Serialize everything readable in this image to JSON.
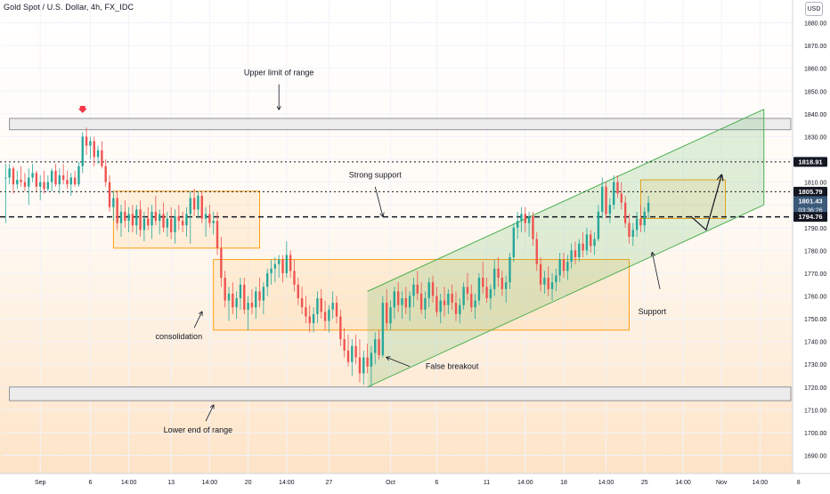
{
  "header": {
    "symbol": "Gold Spot / U.S. Dollar, 4h, FX_IDC",
    "currency": "USD"
  },
  "colors": {
    "up": "#26a69a",
    "down": "#ef5350",
    "channel": "#4caf50",
    "box": "#ff9800",
    "grid": "#f0f3fa"
  },
  "chart_data": {
    "type": "candlestick",
    "title": "Gold Spot / U.S. Dollar, 4h, FX_IDC",
    "y_range": [
      1682,
      1890
    ],
    "y_ticks": [
      1690,
      1700,
      1710,
      1720,
      1730,
      1740,
      1750,
      1760,
      1770,
      1780,
      1790,
      1800,
      1810,
      1820,
      1830,
      1840,
      1850,
      1860,
      1870,
      1880
    ],
    "x_range": [
      0,
      205
    ],
    "x_ticks": [
      {
        "bar": 10,
        "label": "Sep"
      },
      {
        "bar": 23,
        "label": "6"
      },
      {
        "bar": 33,
        "label": "14:00"
      },
      {
        "bar": 44,
        "label": "13"
      },
      {
        "bar": 54,
        "label": "14:00"
      },
      {
        "bar": 64,
        "label": "20"
      },
      {
        "bar": 74,
        "label": "14:00"
      },
      {
        "bar": 85,
        "label": "27"
      },
      {
        "bar": 101,
        "label": "Oct"
      },
      {
        "bar": 113,
        "label": "6"
      },
      {
        "bar": 126,
        "label": "11"
      },
      {
        "bar": 136,
        "label": "14:00"
      },
      {
        "bar": 146,
        "label": "18"
      },
      {
        "bar": 157,
        "label": "14:00"
      },
      {
        "bar": 167,
        "label": "25"
      },
      {
        "bar": 177,
        "label": "14:00"
      },
      {
        "bar": 187,
        "label": "Nov"
      },
      {
        "bar": 197,
        "label": "14:00"
      },
      {
        "bar": 207,
        "label": "8"
      }
    ],
    "price_tags": [
      {
        "value": 1818.91,
        "label": "1818.91",
        "bg": "#131722",
        "fg": "#ffffff"
      },
      {
        "value": 1805.79,
        "label": "1805.79",
        "bg": "#131722",
        "fg": "#ffffff"
      },
      {
        "value": 1801.43,
        "label": "1801.43",
        "sublabel": "03:36:26",
        "bg": "#3b5a7a",
        "fg": "#ffffff"
      },
      {
        "value": 1794.76,
        "label": "1794.76",
        "bg": "#131722",
        "fg": "#ffffff"
      }
    ],
    "levels": [
      {
        "value": 1818.91,
        "style": "dotted"
      },
      {
        "value": 1805.79,
        "style": "dotted"
      },
      {
        "value": 1794.76,
        "style": "dashed"
      }
    ],
    "zones": [
      {
        "name": "upper-range",
        "x0": 2,
        "x1": 205,
        "y0": 1833,
        "y1": 1838
      },
      {
        "name": "lower-range",
        "x0": 2,
        "x1": 205,
        "y0": 1714,
        "y1": 1720
      }
    ],
    "boxes": [
      {
        "x0": 29,
        "x1": 67,
        "y0": 1781,
        "y1": 1806
      },
      {
        "x0": 55,
        "x1": 163,
        "y0": 1745,
        "y1": 1776
      },
      {
        "x0": 166,
        "x1": 188,
        "y0": 1794,
        "y1": 1811
      }
    ],
    "channel": {
      "lower": [
        [
          95,
          1720
        ],
        [
          198,
          1800
        ]
      ],
      "upper": [
        [
          95,
          1762
        ],
        [
          198,
          1842
        ]
      ]
    },
    "projection": [
      [
        179,
        1795
      ],
      [
        183,
        1789
      ],
      [
        187,
        1813
      ]
    ],
    "annotations": [
      {
        "text": "Upper limit of range",
        "x": 72,
        "y": 1857,
        "arrow": [
          [
            72,
            1853
          ],
          [
            72,
            1842
          ]
        ]
      },
      {
        "text": "Strong support",
        "x": 97,
        "y": 1812,
        "arrow": [
          [
            97,
            1808
          ],
          [
            99,
            1795
          ]
        ]
      },
      {
        "text": "consolidation",
        "x": 46,
        "y": 1741,
        "arrow": [
          [
            50,
            1746
          ],
          [
            52,
            1753
          ]
        ]
      },
      {
        "text": "False breakout",
        "x": 117,
        "y": 1728,
        "arrow": [
          [
            106,
            1729
          ],
          [
            100,
            1733
          ]
        ]
      },
      {
        "text": "Support",
        "x": 169,
        "y": 1752,
        "arrow": [
          [
            171,
            1763
          ],
          [
            169,
            1779
          ]
        ]
      },
      {
        "text": "Lower end of range",
        "x": 51,
        "y": 1700,
        "arrow": [
          [
            53,
            1705
          ],
          [
            55,
            1712
          ]
        ]
      }
    ],
    "ohlc": [
      [
        1,
        1812,
        1818,
        1792,
        1812
      ],
      [
        2,
        1812,
        1818,
        1809,
        1816
      ],
      [
        3,
        1816,
        1817,
        1805,
        1809
      ],
      [
        4,
        1809,
        1815,
        1807,
        1811
      ],
      [
        5,
        1811,
        1817,
        1808,
        1810
      ],
      [
        6,
        1810,
        1814,
        1806,
        1808
      ],
      [
        7,
        1808,
        1816,
        1800,
        1812
      ],
      [
        8,
        1812,
        1818,
        1810,
        1814
      ],
      [
        9,
        1814,
        1815,
        1806,
        1808
      ],
      [
        10,
        1808,
        1813,
        1802,
        1810
      ],
      [
        11,
        1810,
        1815,
        1805,
        1807
      ],
      [
        12,
        1807,
        1813,
        1806,
        1810
      ],
      [
        13,
        1810,
        1816,
        1806,
        1815
      ],
      [
        14,
        1815,
        1818,
        1808,
        1809
      ],
      [
        15,
        1809,
        1816,
        1805,
        1813
      ],
      [
        16,
        1813,
        1818,
        1809,
        1811
      ],
      [
        17,
        1811,
        1815,
        1807,
        1809
      ],
      [
        18,
        1809,
        1814,
        1804,
        1812
      ],
      [
        19,
        1812,
        1815,
        1808,
        1809
      ],
      [
        20,
        1809,
        1819,
        1808,
        1817
      ],
      [
        21,
        1817,
        1832,
        1814,
        1830
      ],
      [
        22,
        1830,
        1834,
        1822,
        1826
      ],
      [
        23,
        1826,
        1830,
        1820,
        1828
      ],
      [
        24,
        1828,
        1830,
        1817,
        1821
      ],
      [
        25,
        1821,
        1826,
        1818,
        1824
      ],
      [
        26,
        1824,
        1828,
        1816,
        1817
      ],
      [
        27,
        1817,
        1820,
        1808,
        1810
      ],
      [
        28,
        1810,
        1813,
        1797,
        1799
      ],
      [
        29,
        1799,
        1806,
        1793,
        1803
      ],
      [
        30,
        1803,
        1806,
        1789,
        1792
      ],
      [
        31,
        1792,
        1800,
        1786,
        1797
      ],
      [
        32,
        1797,
        1802,
        1790,
        1793
      ],
      [
        33,
        1793,
        1799,
        1788,
        1796
      ],
      [
        34,
        1796,
        1800,
        1788,
        1791
      ],
      [
        35,
        1791,
        1800,
        1787,
        1798
      ],
      [
        36,
        1798,
        1802,
        1786,
        1789
      ],
      [
        37,
        1789,
        1797,
        1784,
        1794
      ],
      [
        38,
        1794,
        1799,
        1789,
        1791
      ],
      [
        39,
        1791,
        1800,
        1785,
        1797
      ],
      [
        40,
        1797,
        1804,
        1791,
        1793
      ],
      [
        41,
        1793,
        1798,
        1787,
        1796
      ],
      [
        42,
        1796,
        1801,
        1788,
        1790
      ],
      [
        43,
        1790,
        1797,
        1786,
        1794
      ],
      [
        44,
        1794,
        1799,
        1785,
        1788
      ],
      [
        45,
        1788,
        1798,
        1783,
        1795
      ],
      [
        46,
        1795,
        1800,
        1789,
        1793
      ],
      [
        47,
        1793,
        1797,
        1788,
        1791
      ],
      [
        48,
        1791,
        1799,
        1786,
        1796
      ],
      [
        49,
        1796,
        1806,
        1783,
        1803
      ],
      [
        50,
        1803,
        1807,
        1795,
        1798
      ],
      [
        51,
        1798,
        1806,
        1794,
        1804
      ],
      [
        52,
        1804,
        1806,
        1792,
        1794
      ],
      [
        53,
        1794,
        1799,
        1786,
        1796
      ],
      [
        54,
        1796,
        1800,
        1790,
        1792
      ],
      [
        55,
        1792,
        1797,
        1787,
        1793
      ],
      [
        56,
        1793,
        1797,
        1778,
        1781
      ],
      [
        57,
        1781,
        1786,
        1764,
        1768
      ],
      [
        58,
        1768,
        1771,
        1755,
        1758
      ],
      [
        59,
        1758,
        1764,
        1749,
        1761
      ],
      [
        60,
        1761,
        1766,
        1752,
        1755
      ],
      [
        61,
        1755,
        1762,
        1750,
        1759
      ],
      [
        62,
        1759,
        1768,
        1754,
        1765
      ],
      [
        63,
        1765,
        1768,
        1752,
        1754
      ],
      [
        64,
        1754,
        1760,
        1745,
        1757
      ],
      [
        65,
        1757,
        1763,
        1752,
        1755
      ],
      [
        66,
        1755,
        1764,
        1750,
        1762
      ],
      [
        67,
        1762,
        1768,
        1755,
        1758
      ],
      [
        68,
        1758,
        1766,
        1752,
        1764
      ],
      [
        69,
        1764,
        1772,
        1760,
        1770
      ],
      [
        70,
        1770,
        1776,
        1765,
        1772
      ],
      [
        71,
        1772,
        1777,
        1766,
        1774
      ],
      [
        72,
        1774,
        1778,
        1768,
        1776
      ],
      [
        73,
        1776,
        1778,
        1766,
        1770
      ],
      [
        74,
        1770,
        1784,
        1768,
        1778
      ],
      [
        75,
        1778,
        1780,
        1768,
        1771
      ],
      [
        76,
        1771,
        1776,
        1762,
        1765
      ],
      [
        77,
        1765,
        1768,
        1756,
        1759
      ],
      [
        78,
        1759,
        1764,
        1752,
        1755
      ],
      [
        79,
        1755,
        1760,
        1748,
        1751
      ],
      [
        80,
        1751,
        1756,
        1744,
        1748
      ],
      [
        81,
        1748,
        1755,
        1744,
        1752
      ],
      [
        82,
        1752,
        1762,
        1748,
        1759
      ],
      [
        83,
        1759,
        1763,
        1750,
        1753
      ],
      [
        84,
        1753,
        1758,
        1745,
        1749
      ],
      [
        85,
        1749,
        1756,
        1744,
        1754
      ],
      [
        86,
        1754,
        1762,
        1750,
        1757
      ],
      [
        87,
        1757,
        1760,
        1748,
        1751
      ],
      [
        88,
        1751,
        1754,
        1738,
        1741
      ],
      [
        89,
        1741,
        1746,
        1733,
        1736
      ],
      [
        90,
        1736,
        1743,
        1729,
        1731
      ],
      [
        91,
        1731,
        1741,
        1725,
        1738
      ],
      [
        92,
        1738,
        1743,
        1730,
        1733
      ],
      [
        93,
        1733,
        1741,
        1722,
        1726
      ],
      [
        94,
        1726,
        1736,
        1721,
        1733
      ],
      [
        95,
        1733,
        1739,
        1726,
        1729
      ],
      [
        96,
        1729,
        1738,
        1720,
        1735
      ],
      [
        97,
        1735,
        1744,
        1730,
        1741
      ],
      [
        98,
        1741,
        1745,
        1732,
        1734
      ],
      [
        99,
        1734,
        1760,
        1733,
        1757
      ],
      [
        100,
        1757,
        1763,
        1745,
        1748
      ],
      [
        101,
        1748,
        1758,
        1745,
        1755
      ],
      [
        102,
        1755,
        1764,
        1750,
        1762
      ],
      [
        103,
        1762,
        1766,
        1753,
        1756
      ],
      [
        104,
        1756,
        1762,
        1750,
        1759
      ],
      [
        105,
        1759,
        1764,
        1752,
        1755
      ],
      [
        106,
        1755,
        1762,
        1749,
        1760
      ],
      [
        107,
        1760,
        1768,
        1755,
        1765
      ],
      [
        108,
        1765,
        1771,
        1758,
        1761
      ],
      [
        109,
        1761,
        1766,
        1752,
        1754
      ],
      [
        110,
        1754,
        1762,
        1750,
        1759
      ],
      [
        111,
        1759,
        1768,
        1755,
        1766
      ],
      [
        112,
        1766,
        1769,
        1757,
        1760
      ],
      [
        113,
        1760,
        1764,
        1751,
        1753
      ],
      [
        114,
        1753,
        1761,
        1748,
        1758
      ],
      [
        115,
        1758,
        1764,
        1751,
        1756
      ],
      [
        116,
        1756,
        1763,
        1752,
        1761
      ],
      [
        117,
        1761,
        1765,
        1754,
        1757
      ],
      [
        118,
        1757,
        1762,
        1749,
        1752
      ],
      [
        119,
        1752,
        1759,
        1748,
        1756
      ],
      [
        120,
        1756,
        1766,
        1754,
        1764
      ],
      [
        121,
        1764,
        1770,
        1758,
        1761
      ],
      [
        122,
        1761,
        1765,
        1753,
        1755
      ],
      [
        123,
        1755,
        1761,
        1750,
        1758
      ],
      [
        124,
        1758,
        1770,
        1756,
        1768
      ],
      [
        125,
        1768,
        1775,
        1761,
        1764
      ],
      [
        126,
        1764,
        1768,
        1757,
        1759
      ],
      [
        127,
        1759,
        1765,
        1754,
        1763
      ],
      [
        128,
        1763,
        1776,
        1760,
        1772
      ],
      [
        129,
        1772,
        1777,
        1764,
        1768
      ],
      [
        130,
        1768,
        1771,
        1760,
        1763
      ],
      [
        131,
        1763,
        1769,
        1757,
        1766
      ],
      [
        132,
        1766,
        1779,
        1763,
        1777
      ],
      [
        133,
        1777,
        1792,
        1775,
        1790
      ],
      [
        134,
        1790,
        1797,
        1785,
        1793
      ],
      [
        135,
        1793,
        1799,
        1788,
        1796
      ],
      [
        136,
        1796,
        1799,
        1788,
        1792
      ],
      [
        137,
        1792,
        1797,
        1786,
        1795
      ],
      [
        138,
        1795,
        1797,
        1782,
        1785
      ],
      [
        139,
        1785,
        1788,
        1771,
        1774
      ],
      [
        140,
        1774,
        1777,
        1762,
        1765
      ],
      [
        141,
        1765,
        1771,
        1761,
        1768
      ],
      [
        142,
        1768,
        1773,
        1760,
        1763
      ],
      [
        143,
        1763,
        1770,
        1758,
        1766
      ],
      [
        144,
        1766,
        1772,
        1762,
        1769
      ],
      [
        145,
        1769,
        1779,
        1766,
        1776
      ],
      [
        146,
        1776,
        1779,
        1768,
        1771
      ],
      [
        147,
        1771,
        1778,
        1767,
        1775
      ],
      [
        148,
        1775,
        1783,
        1772,
        1780
      ],
      [
        149,
        1780,
        1784,
        1774,
        1777
      ],
      [
        150,
        1777,
        1785,
        1775,
        1783
      ],
      [
        151,
        1783,
        1788,
        1777,
        1780
      ],
      [
        152,
        1780,
        1790,
        1778,
        1787
      ],
      [
        153,
        1787,
        1789,
        1779,
        1782
      ],
      [
        154,
        1782,
        1788,
        1778,
        1785
      ],
      [
        155,
        1785,
        1800,
        1784,
        1797
      ],
      [
        156,
        1797,
        1812,
        1794,
        1808
      ],
      [
        157,
        1808,
        1810,
        1794,
        1796
      ],
      [
        158,
        1796,
        1803,
        1792,
        1800
      ],
      [
        159,
        1800,
        1813,
        1798,
        1810
      ],
      [
        160,
        1810,
        1813,
        1803,
        1805
      ],
      [
        161,
        1805,
        1810,
        1798,
        1801
      ],
      [
        162,
        1801,
        1804,
        1790,
        1792
      ],
      [
        163,
        1792,
        1796,
        1783,
        1786
      ],
      [
        164,
        1786,
        1792,
        1782,
        1789
      ],
      [
        165,
        1789,
        1797,
        1786,
        1794
      ],
      [
        166,
        1794,
        1800,
        1788,
        1791
      ],
      [
        167,
        1791,
        1799,
        1788,
        1797
      ],
      [
        168,
        1797,
        1804,
        1794,
        1801
      ]
    ]
  }
}
